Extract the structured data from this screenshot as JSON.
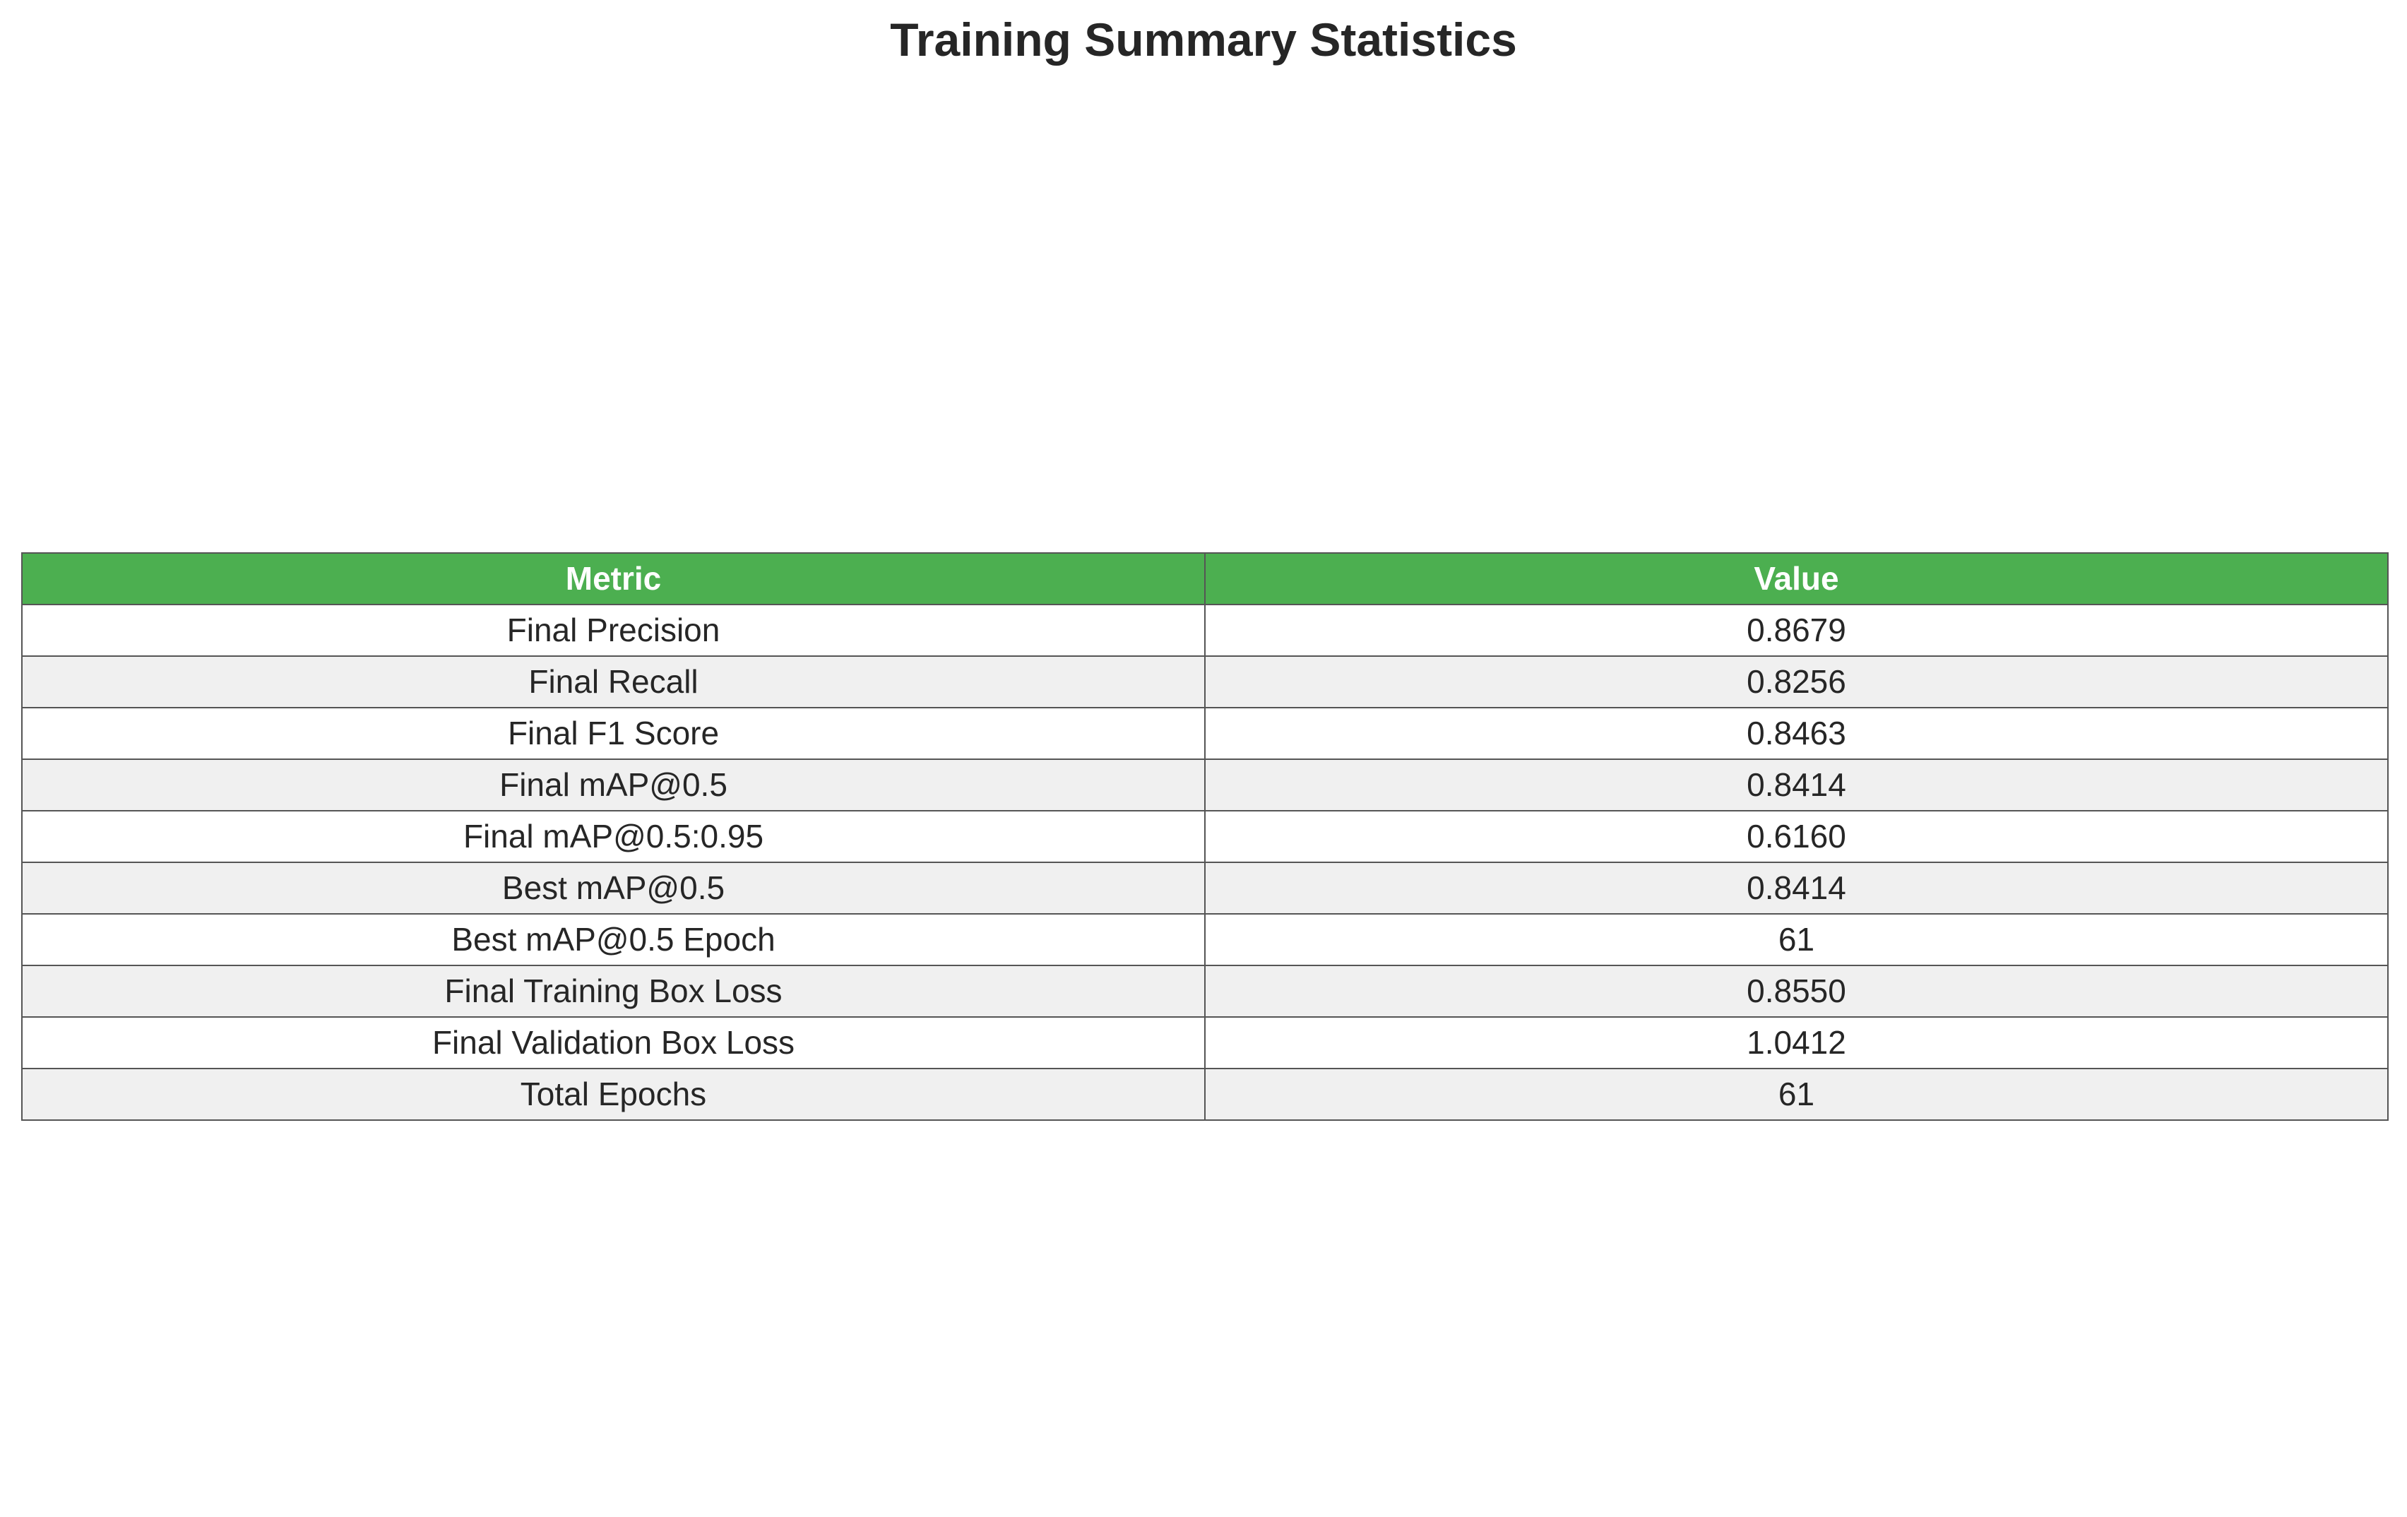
{
  "chart_data": {
    "type": "table",
    "title": "Training Summary Statistics",
    "columns": [
      "Metric",
      "Value"
    ],
    "rows": [
      [
        "Final Precision",
        "0.8679"
      ],
      [
        "Final Recall",
        "0.8256"
      ],
      [
        "Final F1 Score",
        "0.8463"
      ],
      [
        "Final mAP@0.5",
        "0.8414"
      ],
      [
        "Final mAP@0.5:0.95",
        "0.6160"
      ],
      [
        "Best mAP@0.5",
        "0.8414"
      ],
      [
        "Best mAP@0.5 Epoch",
        "61"
      ],
      [
        "Final Training Box Loss",
        "0.8550"
      ],
      [
        "Final Validation Box Loss",
        "1.0412"
      ],
      [
        "Total Epochs",
        "61"
      ]
    ],
    "colors": {
      "header_background": "#4caf50",
      "header_text": "#ffffff",
      "row_alt_background": "#f0f0f0",
      "row_background": "#ffffff",
      "border": "#555555"
    }
  }
}
